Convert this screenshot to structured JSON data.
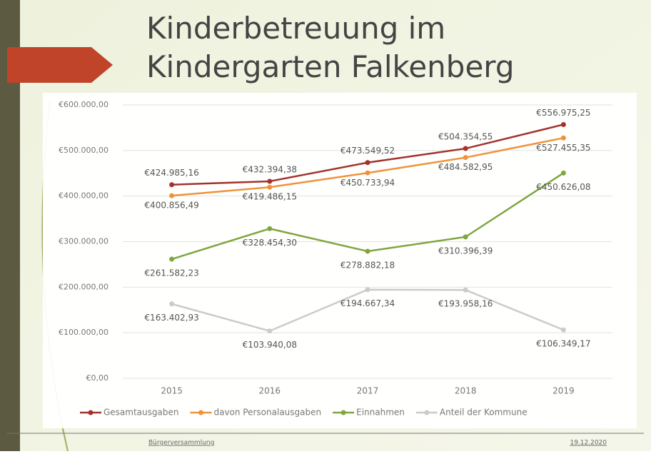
{
  "chart_data": {
    "type": "line",
    "title": "Kinderbetreuung im Kindergarten Falkenberg",
    "categories": [
      "2015",
      "2016",
      "2017",
      "2018",
      "2019"
    ],
    "series": [
      {
        "name": "Gesamtausgaben",
        "color": "#a3322b",
        "values": [
          424985.16,
          432394.38,
          473549.52,
          504354.55,
          556975.25
        ],
        "value_labels": [
          "€424.985,16",
          "€432.394,38",
          "€473.549,52",
          "€504.354,55",
          "€556.975,25"
        ]
      },
      {
        "name": "davon Personalausgaben",
        "color": "#f0923a",
        "values": [
          400856.49,
          419486.15,
          450733.94,
          484582.95,
          527455.35
        ],
        "value_labels": [
          "€400.856,49",
          "€419.486,15",
          "€450.733,94",
          "€484.582,95",
          "€527.455,35"
        ]
      },
      {
        "name": "Einnahmen",
        "color": "#7fa63f",
        "values": [
          261582.23,
          328454.3,
          278882.18,
          310396.39,
          450626.08
        ],
        "value_labels": [
          "€261.582,23",
          "€328.454,30",
          "€278.882,18",
          "€310.396,39",
          "€450.626,08"
        ]
      },
      {
        "name": "Anteil der Kommune",
        "color": "#cbcbcb",
        "values": [
          163402.93,
          103940.08,
          194667.34,
          193958.16,
          106349.17
        ],
        "value_labels": [
          "€163.402,93",
          "€103.940,08",
          "€194.667,34",
          "€193.958,16",
          "€106.349,17"
        ]
      }
    ],
    "ylim": [
      0,
      600000
    ],
    "yticks": [
      {
        "value": 0,
        "label": "€0,00"
      },
      {
        "value": 100000,
        "label": "€100.000,00"
      },
      {
        "value": 200000,
        "label": "€200.000,00"
      },
      {
        "value": 300000,
        "label": "€300.000,00"
      },
      {
        "value": 400000,
        "label": "€400.000,00"
      },
      {
        "value": 500000,
        "label": "€500.000,00"
      },
      {
        "value": 600000,
        "label": "€600.000,00"
      }
    ],
    "grid": true,
    "legend": "bottom"
  },
  "footer": {
    "left": "Bürgerversammlung",
    "right": "19.12.2020"
  }
}
